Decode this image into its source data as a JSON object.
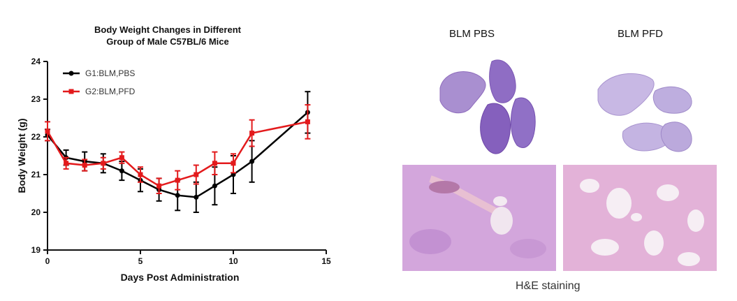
{
  "chart_data": {
    "type": "line",
    "title": [
      "Body Weight  Changes in Different",
      "Group of Male C57BL/6 Mice"
    ],
    "xlabel": "Days Post Administration",
    "ylabel": "Body Weight (g)",
    "xlim": [
      0,
      15
    ],
    "ylim": [
      19,
      24
    ],
    "xticks": [
      0,
      5,
      10,
      15
    ],
    "yticks": [
      19,
      20,
      21,
      22,
      23,
      24
    ],
    "legend_position": "top-left",
    "series": [
      {
        "name": "G1:BLM,PBS",
        "color": "#000000",
        "x": [
          0,
          1,
          2,
          3,
          4,
          5,
          6,
          7,
          8,
          9,
          10,
          11,
          14
        ],
        "y": [
          22.05,
          21.45,
          21.35,
          21.3,
          21.1,
          20.85,
          20.6,
          20.45,
          20.4,
          20.7,
          21.0,
          21.35,
          22.65
        ],
        "error": [
          0.15,
          0.2,
          0.25,
          0.25,
          0.25,
          0.3,
          0.3,
          0.4,
          0.4,
          0.5,
          0.5,
          0.55,
          0.55
        ]
      },
      {
        "name": "G2:BLM,PFD",
        "color": "#e31a1c",
        "x": [
          0,
          1,
          2,
          3,
          4,
          5,
          6,
          7,
          8,
          9,
          10,
          11,
          14
        ],
        "y": [
          22.15,
          21.3,
          21.25,
          21.3,
          21.45,
          21.0,
          20.7,
          20.85,
          21.0,
          21.3,
          21.3,
          22.1,
          22.4
        ],
        "error": [
          0.25,
          0.15,
          0.15,
          0.15,
          0.15,
          0.2,
          0.2,
          0.25,
          0.25,
          0.3,
          0.25,
          0.35,
          0.45
        ]
      }
    ]
  },
  "figure": {
    "label_pbs": "BLM PBS",
    "label_pfd": "BLM PFD",
    "caption": "H&E staining"
  }
}
